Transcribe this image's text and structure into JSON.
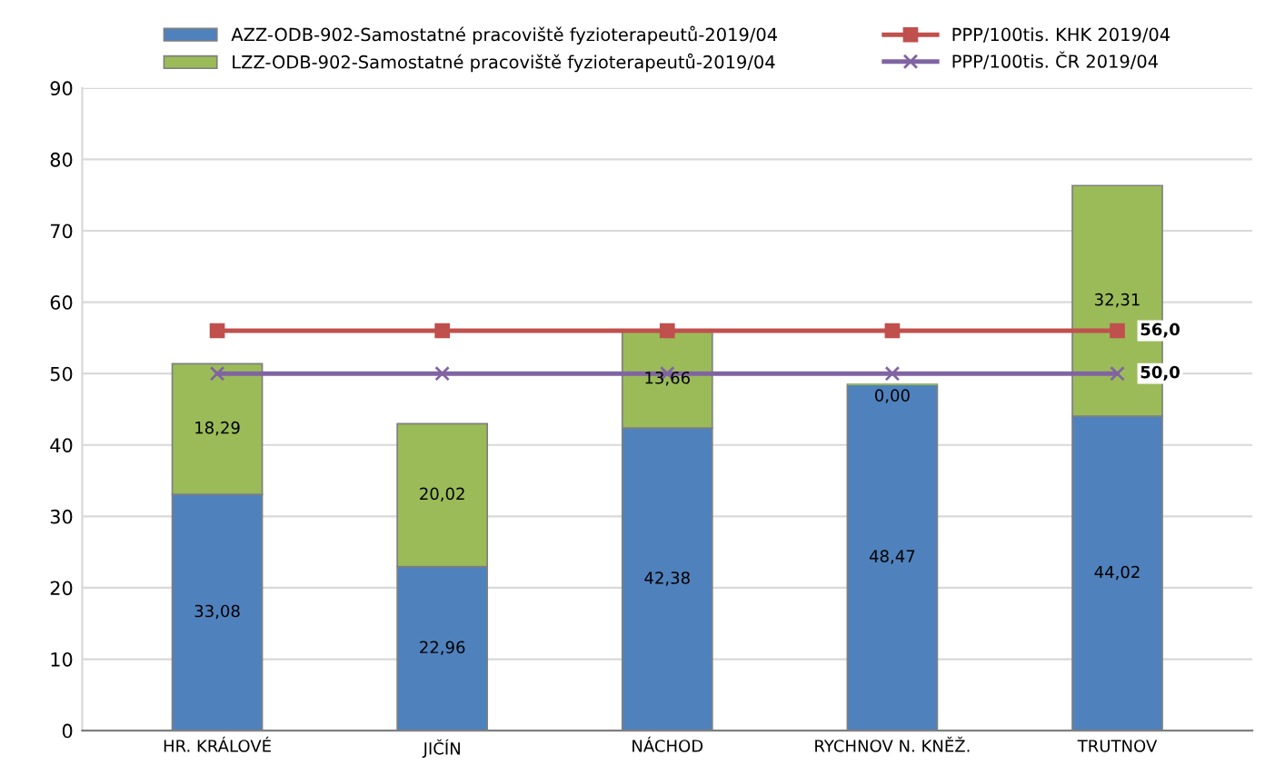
{
  "chart_data": {
    "type": "bar",
    "stacked": true,
    "categories": [
      "HR. KRÁLOVÉ",
      "JIČÍN",
      "NÁCHOD",
      "RYCHNOV N. KNĚŽ.",
      "TRUTNOV"
    ],
    "series": [
      {
        "name": "AZZ-ODB-902-Samostatné pracoviště fyzioterapeutů-2019/04",
        "color": "#4f81bd",
        "values": [
          33.08,
          22.96,
          42.38,
          48.47,
          44.02
        ],
        "value_labels": [
          "33,08",
          "22,96",
          "42,38",
          "48,47",
          "44,02"
        ]
      },
      {
        "name": "LZZ-ODB-902-Samostatné pracoviště fyzioterapeutů-2019/04",
        "color": "#9bbb59",
        "values": [
          18.29,
          20.02,
          13.66,
          0.0,
          32.31
        ],
        "value_labels": [
          "18,29",
          "20,02",
          "13,66",
          "0,00",
          "32,31"
        ]
      },
      {
        "name": "PPP/100tis. KHK 2019/04",
        "type": "line",
        "color": "#c0504d",
        "marker": "square",
        "values": [
          56.0,
          56.0,
          56.0,
          56.0,
          56.0
        ],
        "value_labels": [
          null,
          null,
          null,
          null,
          "56,0"
        ]
      },
      {
        "name": "PPP/100tis. ČR 2019/04",
        "type": "line",
        "color": "#8064a2",
        "marker": "cross",
        "values": [
          50.0,
          50.0,
          50.0,
          50.0,
          50.0
        ],
        "value_labels": [
          null,
          null,
          null,
          null,
          "50,0"
        ]
      }
    ],
    "ylim": [
      0,
      90
    ],
    "yticks": [
      0,
      10,
      20,
      30,
      40,
      50,
      60,
      70,
      80,
      90
    ],
    "grid": "y",
    "legend": "top"
  }
}
